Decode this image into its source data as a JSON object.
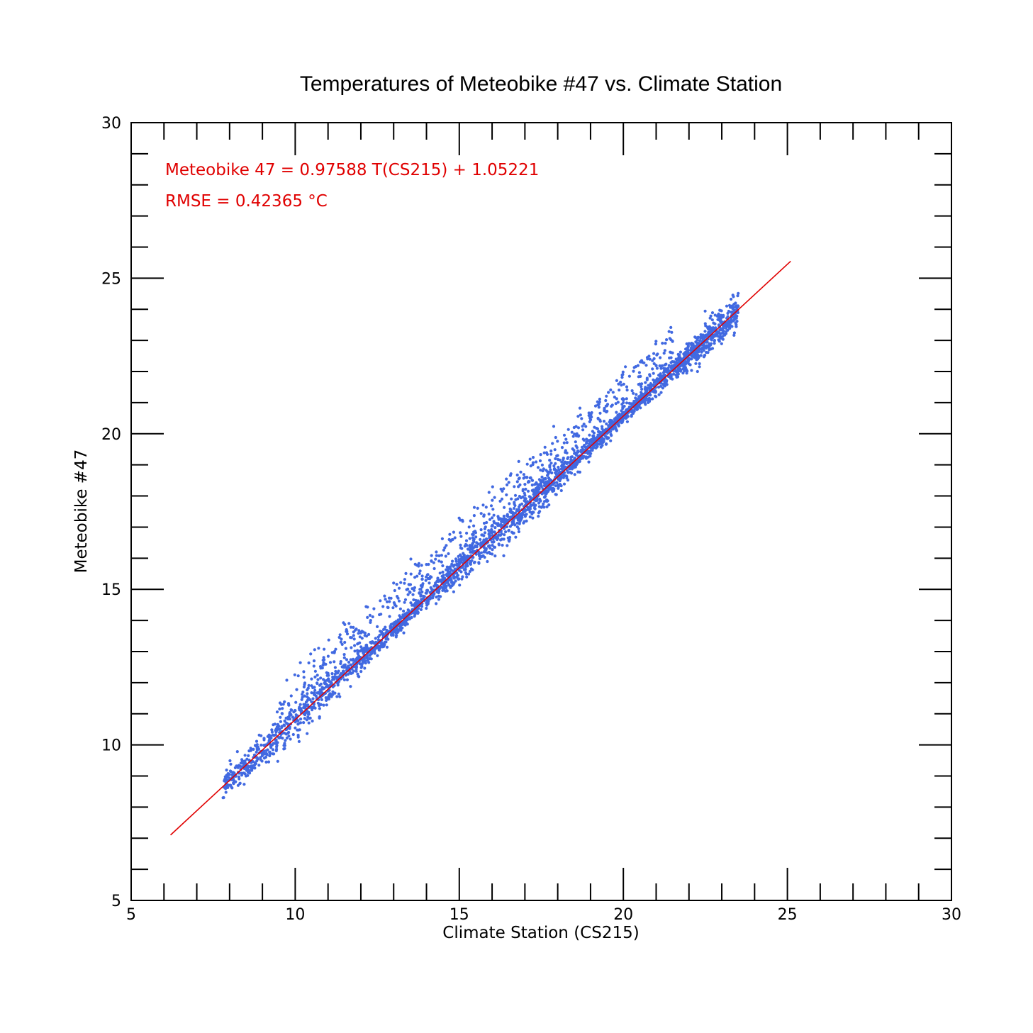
{
  "chart_data": {
    "type": "scatter",
    "title": "Temperatures of Meteobike #47 vs. Climate Station",
    "xlabel": "Climate Station (CS215)",
    "ylabel": "Meteobike #47",
    "xlim": [
      5,
      30
    ],
    "ylim": [
      5,
      30
    ],
    "x_ticks": [
      "5",
      "10",
      "15",
      "20",
      "25",
      "30"
    ],
    "y_ticks": [
      "5",
      "10",
      "15",
      "20",
      "25",
      "30"
    ],
    "grid": false,
    "series": [
      {
        "point_color": "#4169E1",
        "points_range": {
          "x": [
            7.8,
            23.5
          ],
          "y": [
            8.2,
            24.2
          ]
        },
        "points_sample": [
          [
            7.8,
            8.3
          ],
          [
            8.0,
            8.7
          ],
          [
            8.3,
            9.1
          ],
          [
            8.5,
            9.0
          ],
          [
            8.8,
            9.6
          ],
          [
            9.0,
            9.7
          ],
          [
            9.3,
            10.0
          ],
          [
            9.5,
            10.6
          ],
          [
            9.8,
            10.4
          ],
          [
            10.0,
            11.1
          ],
          [
            10.3,
            11.3
          ],
          [
            10.5,
            11.9
          ],
          [
            10.8,
            11.7
          ],
          [
            11.0,
            12.3
          ],
          [
            11.2,
            13.0
          ],
          [
            11.5,
            12.8
          ],
          [
            11.8,
            13.4
          ],
          [
            12.0,
            13.6
          ],
          [
            12.3,
            14.0
          ],
          [
            12.5,
            13.8
          ],
          [
            12.8,
            14.6
          ],
          [
            13.0,
            15.2
          ],
          [
            13.3,
            14.3
          ],
          [
            13.5,
            14.9
          ],
          [
            13.8,
            15.0
          ],
          [
            14.0,
            15.8
          ],
          [
            14.3,
            16.2
          ],
          [
            14.5,
            15.4
          ],
          [
            14.8,
            16.6
          ],
          [
            15.0,
            15.8
          ],
          [
            15.3,
            17.0
          ],
          [
            15.5,
            16.2
          ],
          [
            15.8,
            17.0
          ],
          [
            16.0,
            17.3
          ],
          [
            16.3,
            17.9
          ],
          [
            16.5,
            17.2
          ],
          [
            16.8,
            18.3
          ],
          [
            17.0,
            18.6
          ],
          [
            17.3,
            17.9
          ],
          [
            17.5,
            18.5
          ],
          [
            17.8,
            18.5
          ],
          [
            18.0,
            19.3
          ],
          [
            18.3,
            19.2
          ],
          [
            18.5,
            20.2
          ],
          [
            18.8,
            19.6
          ],
          [
            19.0,
            19.8
          ],
          [
            19.3,
            20.4
          ],
          [
            19.5,
            20.9
          ],
          [
            19.8,
            20.1
          ],
          [
            20.0,
            21.0
          ],
          [
            20.3,
            21.3
          ],
          [
            20.5,
            21.6
          ],
          [
            20.8,
            21.9
          ],
          [
            21.0,
            22.2
          ],
          [
            21.3,
            22.0
          ],
          [
            21.5,
            22.6
          ],
          [
            21.8,
            22.3
          ],
          [
            22.0,
            22.9
          ],
          [
            22.3,
            22.5
          ],
          [
            22.5,
            23.1
          ],
          [
            22.8,
            23.3
          ],
          [
            23.0,
            23.6
          ],
          [
            23.3,
            23.8
          ],
          [
            23.5,
            24.1
          ]
        ]
      },
      {
        "fit_line": {
          "slope": 0.97588,
          "intercept": 1.05221,
          "x_range": [
            6.2,
            25.1
          ]
        },
        "line_color": "#E00000"
      }
    ],
    "annotations": [
      {
        "text": "Meteobike 47 = 0.97588 T(CS215) + 1.05221",
        "color": "#E00000"
      },
      {
        "text": "RMSE = 0.42365 °C",
        "color": "#E00000"
      }
    ]
  }
}
